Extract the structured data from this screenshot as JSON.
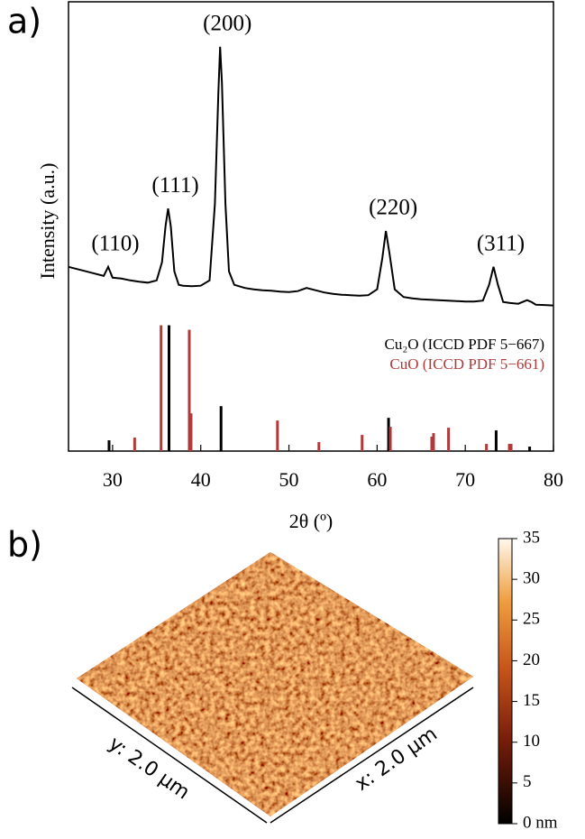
{
  "chart_data": [
    {
      "type": "line",
      "panel_label": "a)",
      "x_label": "2θ (º)",
      "y_label": "Intensity (a.u.)",
      "xlim": [
        25,
        80
      ],
      "xticks": [
        30,
        40,
        50,
        60,
        70,
        80
      ],
      "ylim": [
        0,
        100
      ],
      "color": "#000000",
      "x": [
        25,
        26,
        27,
        28,
        29,
        29.5,
        30,
        31,
        32,
        33,
        34,
        35,
        35.6,
        36,
        36.3,
        36.6,
        37,
        37.5,
        38,
        39,
        40,
        41,
        41.6,
        42,
        42.2,
        42.4,
        42.8,
        43.2,
        43.8,
        45,
        46,
        47,
        48,
        49,
        50,
        51,
        52,
        53,
        54,
        55,
        56,
        57,
        58,
        59,
        60,
        60.6,
        61,
        61.4,
        62,
        63,
        64,
        65,
        66,
        67,
        68,
        69,
        70,
        71,
        72,
        72.7,
        73.2,
        73.7,
        74.3,
        75,
        76,
        77,
        77.5,
        78,
        79,
        80
      ],
      "values": [
        41,
        40.5,
        40,
        39.5,
        39,
        41,
        38.6,
        38.4,
        38,
        37.7,
        37.5,
        38,
        42,
        50,
        54,
        50,
        40,
        37,
        36.8,
        36.7,
        36.8,
        38,
        55,
        80,
        90,
        82,
        55,
        40,
        37,
        36.3,
        36,
        35.8,
        35.7,
        35.5,
        35.4,
        35.6,
        36.3,
        35.8,
        35.3,
        35,
        34.8,
        34.7,
        34.6,
        34.7,
        36,
        43,
        49,
        44,
        36,
        34.3,
        34,
        33.8,
        33.7,
        33.6,
        33.5,
        33.4,
        33.3,
        33.3,
        33.5,
        37,
        41,
        37,
        33.2,
        33,
        32.8,
        33.6,
        33.2,
        32.6,
        32.5,
        32.4
      ],
      "annotations": [
        {
          "text": "(110)",
          "x": 29.5
        },
        {
          "text": "(111)",
          "x": 36.3
        },
        {
          "text": "(200)",
          "x": 42.2
        },
        {
          "text": "(220)",
          "x": 61
        },
        {
          "text": "(311)",
          "x": 73.2
        }
      ],
      "reference_series": [
        {
          "name": "Cu₂O (ICCD PDF 5−667)",
          "color": "#000000",
          "x": [
            29.6,
            36.4,
            42.3,
            61.3,
            73.5,
            77.3
          ],
          "values": [
            2.4,
            28,
            10,
            7.4,
            4.6,
            1
          ]
        },
        {
          "name": "CuO (ICCD PDF 5−661)",
          "color": "#b03a3a",
          "x": [
            32.5,
            35.5,
            38.7,
            38.9,
            48.7,
            53.4,
            58.3,
            61.5,
            66.2,
            66.4,
            68.1,
            72.4,
            75.0,
            75.2
          ],
          "values": [
            3,
            28,
            27,
            8.4,
            6.8,
            2,
            3.6,
            5.4,
            3.2,
            4,
            5.2,
            1.6,
            1.6,
            1.6
          ]
        }
      ]
    },
    {
      "type": "surface",
      "panel_label": "b)",
      "x_label": "x: 2.0 µm",
      "y_label": "y: 2.0 µm",
      "colorbar": {
        "ylim": [
          0,
          35
        ],
        "yticks": [
          {
            "value": 0,
            "label": "0 nm"
          },
          5,
          10,
          15,
          20,
          25,
          30,
          35
        ]
      }
    }
  ]
}
